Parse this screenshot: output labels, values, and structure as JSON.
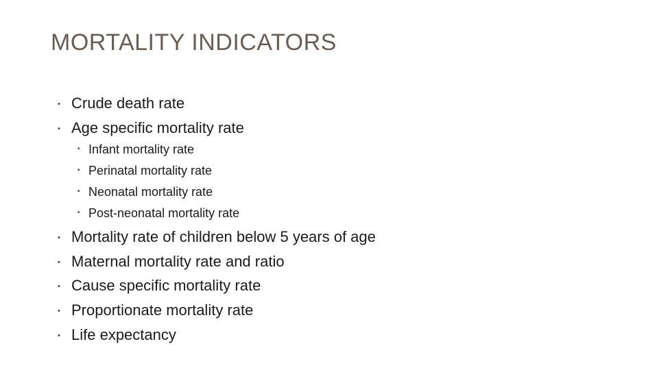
{
  "title": "MORTALITY INDICATORS",
  "bullet_glyph": "•",
  "items": [
    {
      "text": "Crude death rate"
    },
    {
      "text": "Age specific mortality rate"
    },
    {
      "text": "Infant mortality rate"
    },
    {
      "text": "Perinatal mortality rate"
    },
    {
      "text": "Neonatal mortality rate"
    },
    {
      "text": "Post-neonatal mortality rate"
    },
    {
      "text": "Mortality rate of children below 5 years of age"
    },
    {
      "text": "Maternal mortality rate and ratio"
    },
    {
      "text": "Cause specific mortality rate"
    },
    {
      "text": "Proportionate mortality rate"
    },
    {
      "text": "Life expectancy"
    }
  ],
  "colors": {
    "title": "#6b5c53",
    "text": "#1a1a1a"
  }
}
